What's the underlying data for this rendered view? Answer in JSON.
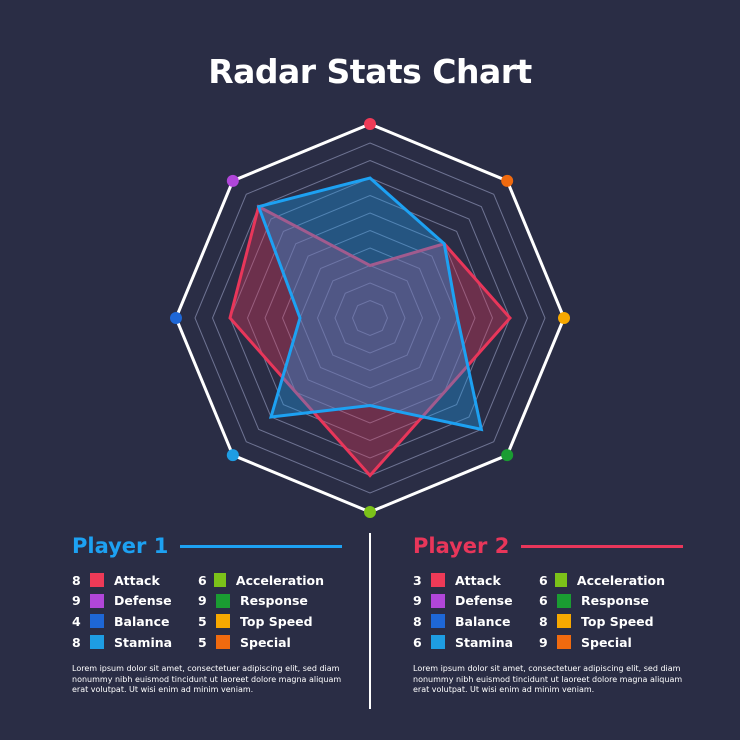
{
  "title": "Radar Stats Chart",
  "chart_data": {
    "type": "radar",
    "title": "Radar Stats Chart",
    "axes": [
      "Attack",
      "Acceleration",
      "Top Speed",
      "Response",
      "Special",
      "Stamina",
      "Balance",
      "Defense"
    ],
    "range": [
      0,
      10
    ],
    "rings": 10,
    "axis_colors": [
      "#ee3a57",
      "#f06a0f",
      "#f7a800",
      "#1a9c32",
      "#7cc219",
      "#1e9de3",
      "#1e67d6",
      "#b046d9"
    ],
    "series": [
      {
        "name": "Player 1",
        "color": "#1da1f2",
        "values": {
          "Attack": 8,
          "Acceleration": 6,
          "Top Speed": 5,
          "Response": 9,
          "Special": 5,
          "Stamina": 8,
          "Balance": 4,
          "Defense": 9
        }
      },
      {
        "name": "Player 2",
        "color": "#e8365a",
        "values": {
          "Attack": 3,
          "Acceleration": 6,
          "Top Speed": 8,
          "Response": 6,
          "Special": 9,
          "Stamina": 6,
          "Balance": 8,
          "Defense": 9
        }
      }
    ]
  },
  "players": [
    {
      "name": "Player 1",
      "color": "#1da1f2",
      "stats_left": [
        {
          "value": "8",
          "label": "Attack",
          "color": "#ee3a57"
        },
        {
          "value": "9",
          "label": "Defense",
          "color": "#b046d9"
        },
        {
          "value": "4",
          "label": "Balance",
          "color": "#1e67d6"
        },
        {
          "value": "8",
          "label": "Stamina",
          "color": "#1e9de3"
        }
      ],
      "stats_right": [
        {
          "value": "6",
          "label": "Acceleration",
          "color": "#7cc219"
        },
        {
          "value": "9",
          "label": "Response",
          "color": "#1a9c32"
        },
        {
          "value": "5",
          "label": "Top Speed",
          "color": "#f7a800"
        },
        {
          "value": "5",
          "label": "Special",
          "color": "#f06a0f"
        }
      ],
      "description": "Lorem ipsum dolor sit amet, consectetuer adipiscing elit, sed diam nonummy nibh euismod tincidunt ut laoreet dolore magna aliquam erat volutpat. Ut wisi enim ad minim veniam."
    },
    {
      "name": "Player 2",
      "color": "#e8365a",
      "stats_left": [
        {
          "value": "3",
          "label": "Attack",
          "color": "#ee3a57"
        },
        {
          "value": "9",
          "label": "Defense",
          "color": "#b046d9"
        },
        {
          "value": "8",
          "label": "Balance",
          "color": "#1e67d6"
        },
        {
          "value": "6",
          "label": "Stamina",
          "color": "#1e9de3"
        }
      ],
      "stats_right": [
        {
          "value": "6",
          "label": "Acceleration",
          "color": "#7cc219"
        },
        {
          "value": "6",
          "label": "Response",
          "color": "#1a9c32"
        },
        {
          "value": "8",
          "label": "Top Speed",
          "color": "#f7a800"
        },
        {
          "value": "9",
          "label": "Special",
          "color": "#f06a0f"
        }
      ],
      "description": "Lorem ipsum dolor sit amet, consectetuer adipiscing elit, sed diam nonummy nibh euismod tincidunt ut laoreet dolore magna aliquam erat volutpat. Ut wisi enim ad minim veniam."
    }
  ]
}
